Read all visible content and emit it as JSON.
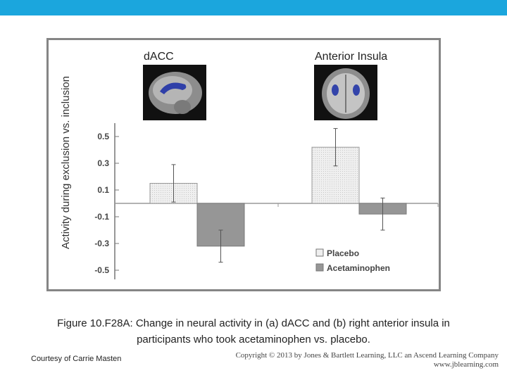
{
  "colors": {
    "top_bar": "#1ba6dd",
    "frame_border": "#858585",
    "placebo_fill": "#efefef",
    "acetaminophen_fill": "#969696"
  },
  "chart_data": {
    "type": "bar",
    "ylabel": "Activity during exclusion vs. inclusion",
    "ylim": [
      -0.55,
      0.6
    ],
    "yticks": [
      0.5,
      0.3,
      0.1,
      -0.1,
      -0.3,
      -0.5
    ],
    "ytick_labels": [
      "0.5",
      "0.3",
      "0.1",
      "-0.1",
      "-0.3",
      "-0.5"
    ],
    "categories": [
      "dACC",
      "Anterior Insula"
    ],
    "series": [
      {
        "name": "Placebo",
        "values": [
          0.15,
          0.42
        ],
        "error": [
          0.14,
          0.14
        ]
      },
      {
        "name": "Acetaminophen",
        "values": [
          -0.32,
          -0.08
        ],
        "error": [
          0.12,
          0.12
        ]
      }
    ],
    "legend_position": "bottom-right",
    "grid": false
  },
  "caption": {
    "line1": "Figure 10.F28A: Change in neural activity in (a) dACC and (b) right anterior insula in",
    "line2": "participants who took acetaminophen vs. placebo."
  },
  "credits": {
    "left": "Courtesy of Carrie Masten",
    "right_line1": "Copyright © 2013 by Jones & Bartlett Learning, LLC an Ascend Learning Company",
    "right_line2": "www.jblearning.com"
  }
}
